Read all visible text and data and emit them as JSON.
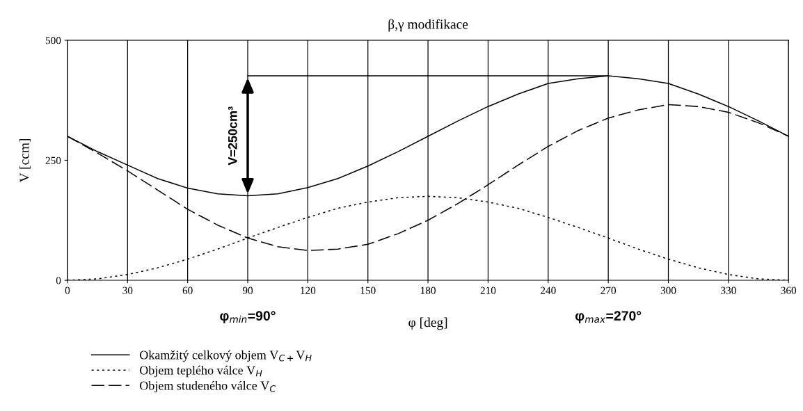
{
  "chart_data": {
    "type": "line",
    "title": "β,γ modifikace",
    "xlabel": "φ [deg]",
    "ylabel": "V [ccm]",
    "x": [
      0,
      15,
      30,
      45,
      60,
      75,
      90,
      105,
      120,
      135,
      150,
      165,
      180,
      195,
      210,
      225,
      240,
      255,
      270,
      285,
      300,
      315,
      330,
      345,
      360
    ],
    "series": [
      {
        "name": "Okamžitý celkový objem V$_{C+}$V$_{H}$",
        "color": "#000000",
        "line_style": "solid",
        "values": [
          300,
          268,
          240,
          212,
          192,
          180,
          176,
          180,
          193,
          212,
          238,
          268,
          300,
          332,
          362,
          388,
          410,
          420,
          426,
          420,
          410,
          388,
          362,
          332,
          300
        ]
      },
      {
        "name": "Objem teplého válce V$_{H}$",
        "color": "#000000",
        "line_style": "dotted",
        "values": [
          0,
          3,
          12,
          26,
          44,
          65,
          88,
          110,
          131,
          150,
          163,
          172,
          175,
          172,
          163,
          150,
          131,
          110,
          88,
          65,
          44,
          26,
          12,
          3,
          0
        ]
      },
      {
        "name": "Objem studeného válce V$_{C}$",
        "color": "#000000",
        "line_style": "dashed",
        "values": [
          300,
          265,
          228,
          188,
          148,
          115,
          88,
          70,
          62,
          65,
          75,
          97,
          125,
          160,
          199,
          240,
          279,
          312,
          338,
          355,
          366,
          362,
          350,
          328,
          300
        ]
      },
      {
        "color": "#000000",
        "line_style": "solid",
        "x": [
          90,
          270
        ],
        "values": [
          426,
          426
        ]
      }
    ],
    "xlim": [
      0,
      360
    ],
    "xticks": [
      0,
      30,
      60,
      90,
      120,
      150,
      180,
      210,
      240,
      270,
      300,
      330,
      360
    ],
    "ylim": [
      0,
      500
    ],
    "yticks": [
      0,
      250,
      500
    ],
    "grid": "x",
    "legend": "bottom left",
    "marker": "none",
    "annotations": [
      "V=250cm³",
      "φ$_{min}$=90°",
      "φ$_{max}$=270°"
    ]
  }
}
